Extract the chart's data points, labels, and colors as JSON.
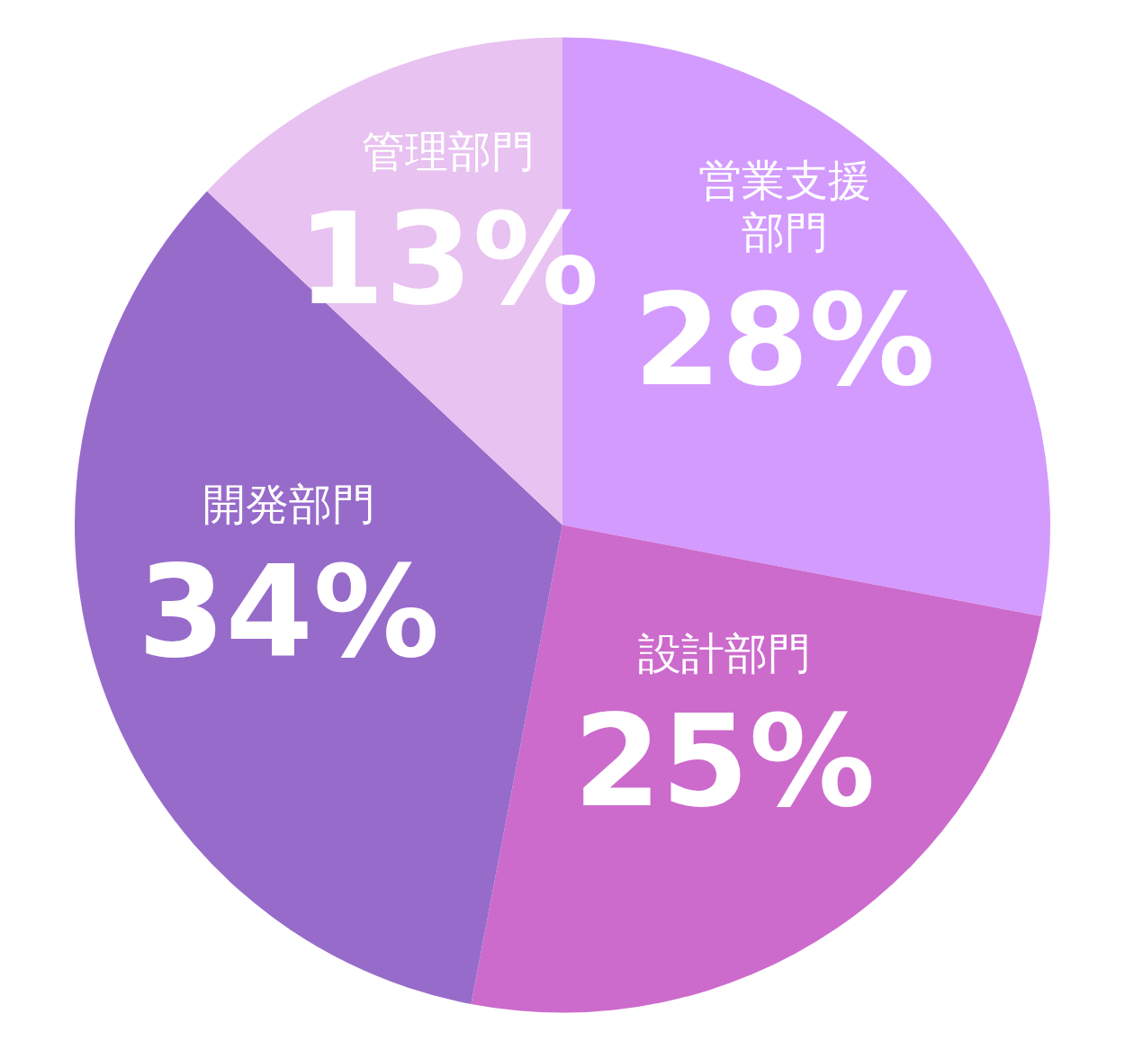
{
  "chart_data": {
    "type": "pie",
    "categories": [
      "営業支援部門",
      "設計部門",
      "開発部門",
      "管理部門"
    ],
    "values": [
      28,
      25,
      34,
      13
    ],
    "value_labels": [
      "28%",
      "25%",
      "34%",
      "13%"
    ],
    "colors": [
      "#d39bfe",
      "#cc6bcc",
      "#976bca",
      "#e8c2f0"
    ]
  }
}
